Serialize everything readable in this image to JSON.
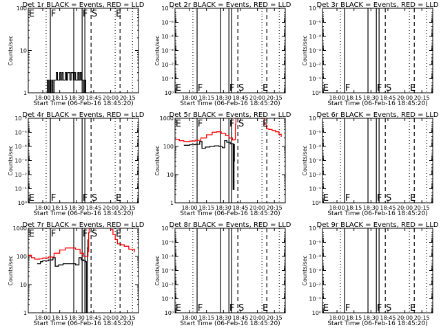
{
  "common": {
    "xlabel": "Start Time (06-Feb-16 18:45:20)",
    "ylabel": "Counts/sec",
    "xlim": [
      -12.8,
      84.6
    ],
    "x_units": "minutes after 18:00 on plot time axis",
    "xticks": [
      {
        "value": 0,
        "label": "18:00"
      },
      {
        "value": 15,
        "label": "18:15"
      },
      {
        "value": 30,
        "label": "18:30"
      },
      {
        "value": 45,
        "label": "18:45"
      },
      {
        "value": 60,
        "label": "20:00"
      },
      {
        "value": 75,
        "label": "20:15"
      }
    ],
    "vlines": [
      {
        "x": 3,
        "style": "dotted"
      },
      {
        "x": 6.7,
        "style": "solid"
      },
      {
        "x": 27.4,
        "style": "solid"
      },
      {
        "x": 34.8,
        "style": "solid"
      },
      {
        "x": 37.2,
        "style": "solid"
      },
      {
        "x": 42.7,
        "style": "dashed"
      },
      {
        "x": 64,
        "style": "dotted"
      },
      {
        "x": 68.3,
        "style": "dashed"
      },
      {
        "x": 79.3,
        "style": "dotted"
      }
    ],
    "markers": [
      {
        "x": -12.3,
        "label": "E"
      },
      {
        "x": 7.2,
        "label": "F"
      },
      {
        "x": 35.2,
        "label": "F"
      },
      {
        "x": 43.2,
        "label": "S"
      },
      {
        "x": 64.5,
        "label": "E"
      }
    ],
    "colors": {
      "events": "#000000",
      "lld": "#ff0000"
    }
  },
  "chart_data": [
    {
      "type": "line",
      "title": "Det 1r BLACK = Events, RED = LLD",
      "yscale": "log",
      "ylim": [
        1,
        100
      ],
      "yreversed": false,
      "marker_pos": "top",
      "yticks": [
        {
          "value": 1,
          "label": "1"
        },
        {
          "value": 10,
          "label": "10"
        },
        {
          "value": 100,
          "label": "100"
        }
      ],
      "series": [
        {
          "name": "Events",
          "color": "#000000",
          "points": [
            [
              3,
              1
            ],
            [
              4,
              2
            ],
            [
              5,
              1
            ],
            [
              6,
              2
            ],
            [
              7,
              1
            ],
            [
              8,
              2
            ],
            [
              9,
              1
            ],
            [
              10,
              2
            ],
            [
              11,
              2
            ],
            [
              12,
              3
            ],
            [
              13,
              2
            ],
            [
              14,
              2
            ],
            [
              15,
              3
            ],
            [
              16,
              2
            ],
            [
              17,
              3
            ],
            [
              18,
              2
            ],
            [
              19,
              2
            ],
            [
              20,
              3
            ],
            [
              21,
              2
            ],
            [
              22,
              3
            ],
            [
              23,
              3
            ],
            [
              24,
              2
            ],
            [
              25,
              3
            ],
            [
              26,
              3
            ],
            [
              27,
              2
            ],
            [
              28,
              3
            ],
            [
              29,
              2
            ],
            [
              30,
              2
            ],
            [
              31,
              3
            ],
            [
              32,
              2
            ],
            [
              33,
              3
            ],
            [
              34,
              2
            ],
            [
              35,
              2
            ],
            [
              36,
              1
            ],
            [
              37,
              2
            ],
            [
              38,
              1
            ],
            [
              39,
              1
            ]
          ]
        },
        {
          "name": "LLD",
          "color": "#ff0000",
          "points": [
            [
              -3,
              100
            ],
            [
              0,
              100
            ]
          ]
        }
      ]
    },
    {
      "type": "line",
      "title": "Det 2r BLACK = Events, RED = LLD",
      "yscale": "log",
      "ylim": [
        1e-06,
        1
      ],
      "yreversed": true,
      "marker_pos": "bottom",
      "yticks": [
        {
          "value": 1e-06,
          "label": "10⁻⁶"
        },
        {
          "value": 1e-05,
          "label": "10⁻⁵"
        },
        {
          "value": 0.0001,
          "label": "10⁻⁴"
        },
        {
          "value": 0.001,
          "label": "10⁻³"
        },
        {
          "value": 0.01,
          "label": "10⁻²"
        },
        {
          "value": 0.1,
          "label": "10⁻¹"
        },
        {
          "value": 1,
          "label": "10⁰"
        }
      ],
      "series": []
    },
    {
      "type": "line",
      "title": "Det 3r BLACK = Events, RED = LLD",
      "yscale": "log",
      "ylim": [
        1e-06,
        1
      ],
      "yreversed": true,
      "marker_pos": "bottom",
      "yticks": [
        {
          "value": 1e-06,
          "label": "10⁻⁶"
        },
        {
          "value": 1e-05,
          "label": "10⁻⁵"
        },
        {
          "value": 0.0001,
          "label": "10⁻⁴"
        },
        {
          "value": 0.001,
          "label": "10⁻³"
        },
        {
          "value": 0.01,
          "label": "10⁻²"
        },
        {
          "value": 0.1,
          "label": "10⁻¹"
        },
        {
          "value": 1,
          "label": "10⁰"
        }
      ],
      "series": []
    },
    {
      "type": "line",
      "title": "Det 4r BLACK = Events, RED = LLD",
      "yscale": "log",
      "ylim": [
        1e-06,
        1
      ],
      "yreversed": true,
      "marker_pos": "bottom",
      "yticks": [
        {
          "value": 1e-06,
          "label": "10⁻⁶"
        },
        {
          "value": 1e-05,
          "label": "10⁻⁵"
        },
        {
          "value": 0.0001,
          "label": "10⁻⁴"
        },
        {
          "value": 0.001,
          "label": "10⁻³"
        },
        {
          "value": 0.01,
          "label": "10⁻²"
        },
        {
          "value": 0.1,
          "label": "10⁻¹"
        },
        {
          "value": 1,
          "label": "10⁰"
        }
      ],
      "series": []
    },
    {
      "type": "line",
      "title": "Det 5r BLACK = Events, RED = LLD",
      "yscale": "log",
      "ylim": [
        1,
        1000
      ],
      "yreversed": false,
      "marker_pos": "top",
      "yticks": [
        {
          "value": 1,
          "label": "1"
        },
        {
          "value": 10,
          "label": "10"
        },
        {
          "value": 100,
          "label": "100"
        },
        {
          "value": 1000,
          "label": "1000"
        }
      ],
      "series": [
        {
          "name": "Events",
          "color": "#000000",
          "points": [
            [
              -5,
              110
            ],
            [
              0,
              115
            ],
            [
              5,
              120
            ],
            [
              9,
              150
            ],
            [
              10,
              150
            ],
            [
              11,
              85
            ],
            [
              14,
              95
            ],
            [
              18,
              100
            ],
            [
              22,
              105
            ],
            [
              26,
              100
            ],
            [
              29,
              90
            ],
            [
              30,
              90
            ],
            [
              31,
              160
            ],
            [
              33,
              140
            ],
            [
              36,
              125
            ],
            [
              38,
              125
            ],
            [
              38.5,
              3
            ],
            [
              39,
              3
            ],
            [
              39.3,
              120
            ],
            [
              39.6,
              30
            ],
            [
              40,
              30
            ]
          ]
        },
        {
          "name": "LLD",
          "color": "#ff0000",
          "points": [
            [
              -12.8,
              180
            ],
            [
              -9,
              160
            ],
            [
              -5,
              150
            ],
            [
              0,
              155
            ],
            [
              5,
              165
            ],
            [
              10,
              200
            ],
            [
              15,
              260
            ],
            [
              20,
              320
            ],
            [
              24,
              330
            ],
            [
              28,
              290
            ],
            [
              32,
              240
            ],
            [
              35,
              200
            ],
            [
              38,
              170
            ],
            [
              40,
              175
            ],
            [
              40.5,
              600
            ],
            [
              41,
              1100
            ],
            [
              42,
              1200
            ]
          ]
        },
        {
          "name": "LLD",
          "color": "#ff0000",
          "points": [
            [
              63,
              1200
            ],
            [
              64,
              1000
            ],
            [
              66,
              600
            ],
            [
              68,
              420
            ],
            [
              70,
              400
            ],
            [
              73,
              370
            ],
            [
              76,
              330
            ],
            [
              79,
              270
            ],
            [
              81,
              220
            ]
          ]
        }
      ]
    },
    {
      "type": "line",
      "title": "Det 6r BLACK = Events, RED = LLD",
      "yscale": "log",
      "ylim": [
        1e-06,
        1
      ],
      "yreversed": true,
      "marker_pos": "bottom",
      "yticks": [
        {
          "value": 1e-06,
          "label": "10⁻⁶"
        },
        {
          "value": 1e-05,
          "label": "10⁻⁵"
        },
        {
          "value": 0.0001,
          "label": "10⁻⁴"
        },
        {
          "value": 0.001,
          "label": "10⁻³"
        },
        {
          "value": 0.01,
          "label": "10⁻²"
        },
        {
          "value": 0.1,
          "label": "10⁻¹"
        },
        {
          "value": 1,
          "label": "10⁰"
        }
      ],
      "series": []
    },
    {
      "type": "line",
      "title": "Det 7r BLACK = Events, RED = LLD",
      "yscale": "log",
      "ylim": [
        1,
        1000
      ],
      "yreversed": false,
      "marker_pos": "top",
      "yticks": [
        {
          "value": 1,
          "label": "1"
        },
        {
          "value": 10,
          "label": "10"
        },
        {
          "value": 100,
          "label": "100"
        },
        {
          "value": 1000,
          "label": "1000"
        }
      ],
      "series": [
        {
          "name": "Events",
          "color": "#000000",
          "points": [
            [
              -5,
              55
            ],
            [
              -2,
              65
            ],
            [
              0,
              70
            ],
            [
              5,
              75
            ],
            [
              9,
              90
            ],
            [
              10,
              90
            ],
            [
              11,
              45
            ],
            [
              14,
              50
            ],
            [
              18,
              55
            ],
            [
              22,
              55
            ],
            [
              26,
              55
            ],
            [
              29,
              50
            ],
            [
              31,
              50
            ],
            [
              32,
              90
            ],
            [
              34,
              75
            ],
            [
              36,
              70
            ],
            [
              38,
              65
            ],
            [
              38.5,
              1
            ],
            [
              39,
              1
            ],
            [
              39.5,
              200
            ],
            [
              40,
              400
            ]
          ]
        },
        {
          "name": "LLD",
          "color": "#ff0000",
          "points": [
            [
              -12.8,
              110
            ],
            [
              -10,
              90
            ],
            [
              -7,
              80
            ],
            [
              -3,
              82
            ],
            [
              0,
              88
            ],
            [
              5,
              95
            ],
            [
              10,
              130
            ],
            [
              15,
              170
            ],
            [
              20,
              200
            ],
            [
              25,
              200
            ],
            [
              29,
              180
            ],
            [
              33,
              130
            ],
            [
              36,
              100
            ],
            [
              39,
              100
            ],
            [
              40,
              150
            ],
            [
              40.5,
              700
            ],
            [
              41,
              1200
            ]
          ]
        },
        {
          "name": "LLD",
          "color": "#ff0000",
          "points": [
            [
              58,
              1200
            ],
            [
              60,
              900
            ],
            [
              62,
              600
            ],
            [
              64,
              400
            ],
            [
              66,
              280
            ],
            [
              69,
              260
            ],
            [
              72,
              230
            ],
            [
              76,
              180
            ],
            [
              81,
              140
            ]
          ]
        }
      ]
    },
    {
      "type": "line",
      "title": "Det 8r BLACK = Events, RED = LLD",
      "yscale": "log",
      "ylim": [
        1e-06,
        1
      ],
      "yreversed": true,
      "marker_pos": "bottom",
      "yticks": [
        {
          "value": 1e-06,
          "label": "10⁻⁶"
        },
        {
          "value": 1e-05,
          "label": "10⁻⁵"
        },
        {
          "value": 0.0001,
          "label": "10⁻⁴"
        },
        {
          "value": 0.001,
          "label": "10⁻³"
        },
        {
          "value": 0.01,
          "label": "10⁻²"
        },
        {
          "value": 0.1,
          "label": "10⁻¹"
        },
        {
          "value": 1,
          "label": "10⁰"
        }
      ],
      "series": []
    },
    {
      "type": "line",
      "title": "Det 9r BLACK = Events, RED = LLD",
      "yscale": "log",
      "ylim": [
        1e-06,
        1
      ],
      "yreversed": true,
      "marker_pos": "bottom",
      "yticks": [
        {
          "value": 1e-06,
          "label": "10⁻⁶"
        },
        {
          "value": 1e-05,
          "label": "10⁻⁵"
        },
        {
          "value": 0.0001,
          "label": "10⁻⁴"
        },
        {
          "value": 0.001,
          "label": "10⁻³"
        },
        {
          "value": 0.01,
          "label": "10⁻²"
        },
        {
          "value": 0.1,
          "label": "10⁻¹"
        },
        {
          "value": 1,
          "label": "10⁰"
        }
      ],
      "series": []
    }
  ]
}
